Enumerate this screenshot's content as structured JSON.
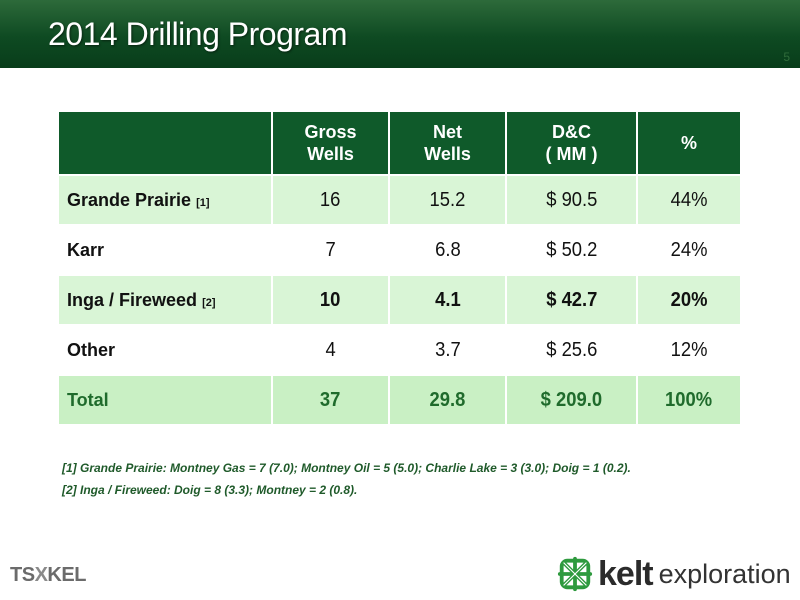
{
  "slide": {
    "title": "2014 Drilling Program",
    "page_number": "5"
  },
  "table": {
    "headers": {
      "c0": "",
      "c1": "Gross\nWells",
      "c2": "Net\nWells",
      "c3": "D&C\n( MM )",
      "c4": "%"
    },
    "rows": [
      {
        "area": "Grande Prairie",
        "note": "[1]",
        "gross": "16",
        "net": "15.2",
        "dc": "$ 90.5",
        "pct": "44%"
      },
      {
        "area": "Karr",
        "note": "",
        "gross": "7",
        "net": "6.8",
        "dc": "$ 50.2",
        "pct": "24%"
      },
      {
        "area": "Inga / Fireweed",
        "note": "[2]",
        "gross": "10",
        "net": "4.1",
        "dc": "$ 42.7",
        "pct": "20%"
      },
      {
        "area": "Other",
        "note": "",
        "gross": "4",
        "net": "3.7",
        "dc": "$ 25.6",
        "pct": "12%"
      },
      {
        "area": "Total",
        "note": "",
        "gross": "37",
        "net": "29.8",
        "dc": "$ 209.0",
        "pct": "100%"
      }
    ]
  },
  "footnotes": [
    "[1] Grande Prairie: Montney Gas = 7 (7.0); Montney Oil = 5 (5.0); Charlie Lake = 3 (3.0); Doig = 1 (0.2).",
    "[2] Inga / Fireweed: Doig = 8 (3.3); Montney = 2 (0.8)."
  ],
  "logos": {
    "tsx_left": "TS",
    "tsx_x": "X",
    "tsx_right": "KEL",
    "kelt_word": "kelt",
    "kelt_sub": "exploration"
  },
  "colors": {
    "header_green": "#0e4a22",
    "table_header": "#0f5a2a",
    "row_light": "#d9f5d6",
    "total_text": "#1f6b2c"
  }
}
